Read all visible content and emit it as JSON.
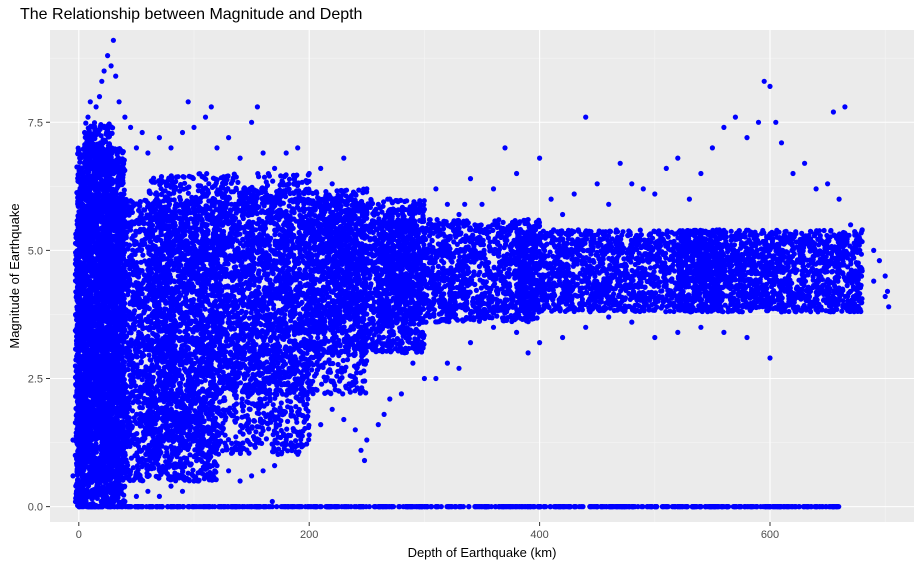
{
  "chart_data": {
    "type": "scatter",
    "title": "The Relationship between Magnitude and Depth",
    "xlabel": "Depth of Earthquake (km)",
    "ylabel": "Magnitude of Earthquake",
    "xlim": [
      -25,
      725
    ],
    "ylim": [
      -0.3,
      9.3
    ],
    "xticks": [
      0,
      200,
      400,
      600
    ],
    "xtick_labels": [
      "0",
      "200",
      "400",
      "600"
    ],
    "yticks": [
      0.0,
      2.5,
      5.0,
      7.5
    ],
    "ytick_labels": [
      "0.0",
      "2.5",
      "5.0",
      "7.5"
    ],
    "grid": true,
    "background": "#ebebeb",
    "point_color": "#0000ff",
    "points": [
      [
        -5,
        1.3
      ],
      [
        -5,
        0.6
      ],
      [
        -3,
        1.0
      ],
      [
        -2,
        0.3
      ],
      [
        0,
        0.8
      ],
      [
        5,
        7.3
      ],
      [
        8,
        7.6
      ],
      [
        10,
        7.9
      ],
      [
        15,
        7.8
      ],
      [
        18,
        8.0
      ],
      [
        20,
        8.3
      ],
      [
        22,
        8.5
      ],
      [
        25,
        8.8
      ],
      [
        28,
        8.6
      ],
      [
        30,
        9.1
      ],
      [
        32,
        8.4
      ],
      [
        35,
        7.9
      ],
      [
        40,
        7.6
      ],
      [
        45,
        7.4
      ],
      [
        50,
        7.0
      ],
      [
        55,
        7.3
      ],
      [
        60,
        6.9
      ],
      [
        70,
        7.2
      ],
      [
        80,
        7.0
      ],
      [
        90,
        7.3
      ],
      [
        95,
        7.9
      ],
      [
        100,
        7.4
      ],
      [
        110,
        7.6
      ],
      [
        115,
        7.8
      ],
      [
        120,
        7.0
      ],
      [
        130,
        7.2
      ],
      [
        140,
        6.8
      ],
      [
        150,
        7.5
      ],
      [
        155,
        7.8
      ],
      [
        160,
        6.9
      ],
      [
        170,
        6.6
      ],
      [
        180,
        6.9
      ],
      [
        190,
        7.0
      ],
      [
        200,
        6.5
      ],
      [
        210,
        6.6
      ],
      [
        220,
        6.3
      ],
      [
        230,
        6.8
      ],
      [
        240,
        6.1
      ],
      [
        250,
        6.2
      ],
      [
        260,
        5.9
      ],
      [
        270,
        6.0
      ],
      [
        280,
        5.8
      ],
      [
        290,
        5.7
      ],
      [
        300,
        5.8
      ],
      [
        310,
        6.2
      ],
      [
        320,
        5.9
      ],
      [
        330,
        5.7
      ],
      [
        335,
        5.9
      ],
      [
        340,
        6.4
      ],
      [
        350,
        5.9
      ],
      [
        360,
        6.2
      ],
      [
        370,
        7.0
      ],
      [
        380,
        6.5
      ],
      [
        390,
        5.6
      ],
      [
        400,
        6.8
      ],
      [
        410,
        6.0
      ],
      [
        420,
        5.7
      ],
      [
        430,
        6.1
      ],
      [
        440,
        7.6
      ],
      [
        450,
        6.3
      ],
      [
        460,
        5.9
      ],
      [
        470,
        6.7
      ],
      [
        480,
        6.3
      ],
      [
        490,
        6.2
      ],
      [
        500,
        6.1
      ],
      [
        510,
        6.6
      ],
      [
        520,
        6.8
      ],
      [
        530,
        6.0
      ],
      [
        540,
        6.5
      ],
      [
        550,
        7.0
      ],
      [
        560,
        7.4
      ],
      [
        570,
        7.6
      ],
      [
        580,
        7.2
      ],
      [
        590,
        7.5
      ],
      [
        595,
        8.3
      ],
      [
        600,
        8.2
      ],
      [
        605,
        7.5
      ],
      [
        610,
        7.1
      ],
      [
        620,
        6.5
      ],
      [
        630,
        6.7
      ],
      [
        640,
        6.2
      ],
      [
        650,
        6.3
      ],
      [
        655,
        7.7
      ],
      [
        660,
        6.0
      ],
      [
        665,
        7.8
      ],
      [
        670,
        5.5
      ],
      [
        680,
        5.4
      ],
      [
        690,
        5.0
      ],
      [
        695,
        4.8
      ],
      [
        700,
        4.5
      ],
      [
        702,
        4.2
      ],
      [
        703,
        3.9
      ],
      [
        700,
        4.1
      ],
      [
        690,
        4.4
      ],
      [
        680,
        4.6
      ],
      [
        670,
        4.2
      ],
      [
        640,
        4.0
      ],
      [
        610,
        3.8
      ],
      [
        600,
        2.9
      ],
      [
        580,
        3.3
      ],
      [
        560,
        3.4
      ],
      [
        540,
        3.5
      ],
      [
        520,
        3.4
      ],
      [
        500,
        3.3
      ],
      [
        480,
        3.6
      ],
      [
        460,
        3.7
      ],
      [
        440,
        3.5
      ],
      [
        420,
        3.3
      ],
      [
        400,
        3.2
      ],
      [
        390,
        3.0
      ],
      [
        380,
        3.4
      ],
      [
        360,
        3.5
      ],
      [
        340,
        3.2
      ],
      [
        330,
        2.7
      ],
      [
        320,
        2.8
      ],
      [
        310,
        2.5
      ],
      [
        300,
        2.5
      ],
      [
        290,
        2.8
      ],
      [
        280,
        2.2
      ],
      [
        270,
        2.1
      ],
      [
        265,
        1.8
      ],
      [
        260,
        1.6
      ],
      [
        250,
        1.3
      ],
      [
        245,
        1.1
      ],
      [
        248,
        0.9
      ],
      [
        240,
        1.5
      ],
      [
        230,
        1.7
      ],
      [
        220,
        1.9
      ],
      [
        210,
        1.6
      ],
      [
        200,
        1.4
      ],
      [
        190,
        1.2
      ],
      [
        180,
        1.3
      ],
      [
        170,
        0.8
      ],
      [
        160,
        0.7
      ],
      [
        150,
        0.6
      ],
      [
        140,
        0.5
      ],
      [
        130,
        0.7
      ],
      [
        120,
        0.8
      ],
      [
        110,
        0.6
      ],
      [
        100,
        0.5
      ],
      [
        90,
        0.3
      ],
      [
        80,
        0.4
      ],
      [
        70,
        0.2
      ],
      [
        60,
        0.3
      ],
      [
        50,
        0.2
      ],
      [
        40,
        0.1
      ],
      [
        30,
        0.1
      ],
      [
        20,
        0.1
      ],
      [
        10,
        0.0
      ],
      [
        168,
        0.1
      ],
      [
        300,
        0.0
      ],
      [
        350,
        0.0
      ],
      [
        400,
        0.0
      ],
      [
        430,
        0.0
      ],
      [
        450,
        0.0
      ],
      [
        470,
        0.0
      ],
      [
        500,
        0.0
      ],
      [
        520,
        0.0
      ],
      [
        540,
        0.0
      ],
      [
        560,
        0.0
      ],
      [
        580,
        0.0
      ],
      [
        600,
        0.0
      ],
      [
        615,
        0.0
      ],
      [
        625,
        0.0
      ],
      [
        645,
        0.0
      ],
      [
        655,
        0.0
      ]
    ],
    "dense_regions": [
      {
        "x": [
          -2,
          40
        ],
        "y": [
          0.0,
          7.0
        ],
        "n": 2600
      },
      {
        "x": [
          5,
          30
        ],
        "y": [
          0.5,
          7.5
        ],
        "n": 900
      },
      {
        "x": [
          -3,
          5
        ],
        "y": [
          0.0,
          5.5
        ],
        "n": 400
      },
      {
        "x": [
          20,
          120
        ],
        "y": [
          0.5,
          6.0
        ],
        "n": 2600
      },
      {
        "x": [
          60,
          200
        ],
        "y": [
          1.0,
          6.5
        ],
        "n": 2200
      },
      {
        "x": [
          120,
          250
        ],
        "y": [
          2.2,
          6.2
        ],
        "n": 1800
      },
      {
        "x": [
          200,
          300
        ],
        "y": [
          3.0,
          6.0
        ],
        "n": 1500
      },
      {
        "x": [
          260,
          400
        ],
        "y": [
          3.6,
          5.6
        ],
        "n": 1500
      },
      {
        "x": [
          380,
          560
        ],
        "y": [
          3.8,
          5.4
        ],
        "n": 1600
      },
      {
        "x": [
          520,
          680
        ],
        "y": [
          3.8,
          5.4
        ],
        "n": 1600
      },
      {
        "x": [
          0,
          660
        ],
        "y": [
          0.0,
          0.0
        ],
        "n": 700
      }
    ]
  }
}
